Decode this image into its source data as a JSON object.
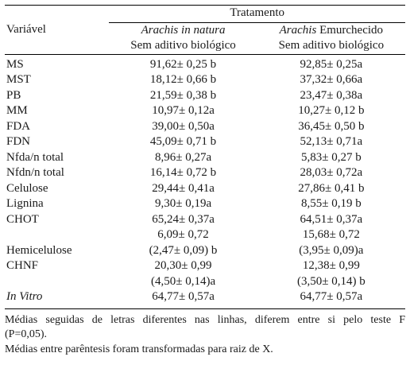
{
  "header": {
    "treatment_label": "Tratamento",
    "variable_label": "Variável",
    "col_a": {
      "title_italic": "Arachis in natura",
      "title_plain": "",
      "subtitle": "Sem aditivo biológico"
    },
    "col_b": {
      "title_italic": "Arachis",
      "title_plain": " Emurchecido",
      "subtitle": "Sem aditivo biológico"
    }
  },
  "rows": [
    {
      "variable": "MS",
      "a": "91,62± 0,25 b",
      "b": "92,85± 0,25a"
    },
    {
      "variable": "MST",
      "a": "18,12± 0,66 b",
      "b": "37,32± 0,66a"
    },
    {
      "variable": "PB",
      "a": "21,59± 0,38 b",
      "b": "23,47± 0,38a"
    },
    {
      "variable": "MM",
      "a": "10,97± 0,12a",
      "b": "10,27± 0,12 b"
    },
    {
      "variable": "FDA",
      "a": "39,00± 0,50a",
      "b": "36,45± 0,50 b"
    },
    {
      "variable": "FDN",
      "a": "45,09± 0,71 b",
      "b": "52,13± 0,71a"
    },
    {
      "variable": "Nfda/n total",
      "a": "8,96± 0,27a",
      "b": "5,83± 0,27 b"
    },
    {
      "variable": "Nfdn/n total",
      "a": "16,14± 0,72 b",
      "b": "28,03± 0,72a"
    },
    {
      "variable": "Celulose",
      "a": "29,44± 0,41a",
      "b": "27,86± 0,41 b"
    },
    {
      "variable": "Lignina",
      "a": "9,30± 0,19a",
      "b": "8,55± 0,19 b"
    },
    {
      "variable": "CHOT",
      "a": "65,24± 0,37a",
      "b": "64,51± 0,37a"
    },
    {
      "variable": "",
      "a": "6,09± 0,72",
      "b": "15,68± 0,72"
    },
    {
      "variable": "Hemicelulose",
      "a": "(2,47± 0,09) b",
      "b": "(3,95± 0,09)a"
    },
    {
      "variable": "CHNF",
      "a": "20,30± 0,99",
      "b": "12,38± 0,99"
    },
    {
      "variable": "",
      "a": "(4,50± 0,14)a",
      "b": "(3,50± 0,14) b"
    },
    {
      "variable": "In Vitro",
      "a": "64,77± 0,57a",
      "b": "64,77± 0,57a"
    }
  ],
  "notes": {
    "note1": "Médias seguidas de letras diferentes nas linhas, diferem entre si pelo teste F (P=0,05).",
    "note2": "Médias entre parêntesis foram transformadas para raiz de X."
  }
}
